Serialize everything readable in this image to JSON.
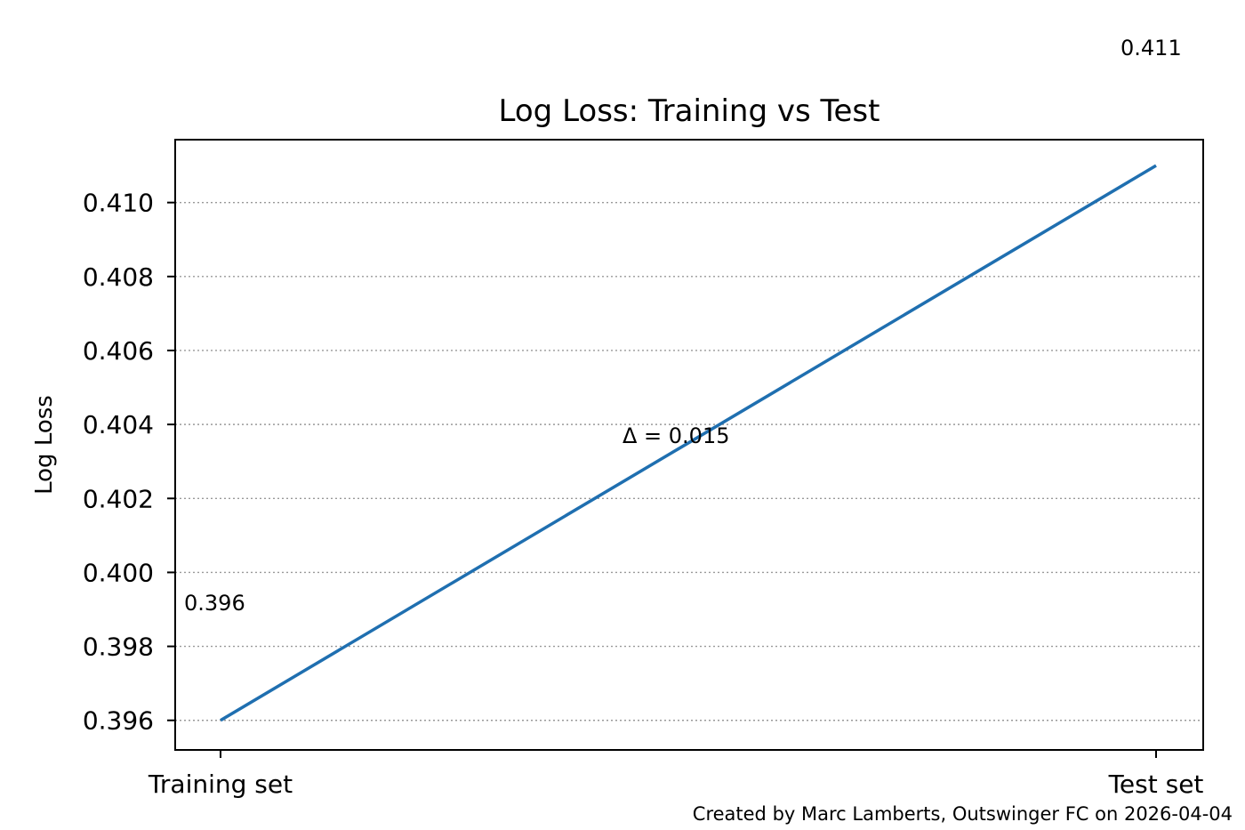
{
  "chart_data": {
    "type": "line",
    "title": "Log Loss: Training vs Test",
    "xlabel": "",
    "ylabel": "Log Loss",
    "categories": [
      "Training set",
      "Test set"
    ],
    "series": [
      {
        "values": [
          0.396,
          0.411
        ],
        "color": "#1f6fb0"
      }
    ],
    "ylim": [
      0.3952,
      0.4117
    ],
    "yticks": [
      0.396,
      0.398,
      0.4,
      0.402,
      0.404,
      0.406,
      0.408,
      0.41
    ],
    "ytick_labels": [
      "0.396",
      "0.398",
      "0.400",
      "0.402",
      "0.404",
      "0.406",
      "0.408",
      "0.410"
    ],
    "grid": "y-dotted",
    "point_labels": [
      "0.396",
      "0.411"
    ],
    "annotation": "Δ = 0.015",
    "credit": "Created by Marc Lamberts, Outswinger FC on 2026-04-04"
  }
}
